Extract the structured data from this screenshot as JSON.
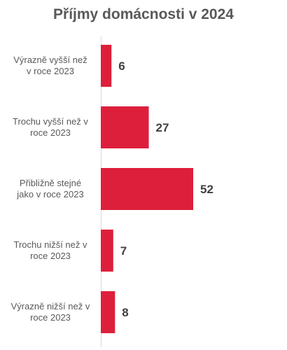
{
  "chart_data": {
    "type": "bar",
    "orientation": "horizontal",
    "title": "Příjmy domácnosti  v 2024",
    "categories": [
      "Výrazně vyšší než v roce 2023",
      "Trochu vyšší než v roce 2023",
      "Přibližně stejné jako v roce 2023",
      "Trochu nižší než v roce 2023",
      "Výrazně nižší než v roce 2023"
    ],
    "category_lines": [
      [
        "Výrazně vyšší než",
        "v roce 2023"
      ],
      [
        "Trochu vyšší než v",
        "roce 2023"
      ],
      [
        "Přibližně stejné",
        "jako v roce 2023"
      ],
      [
        "Trochu nižší než v",
        "roce 2023"
      ],
      [
        "Výrazně nižší než v",
        "roce 2023"
      ]
    ],
    "values": [
      6,
      27,
      52,
      7,
      8
    ],
    "data_labels": [
      "6",
      "27",
      "52",
      "7",
      "8"
    ],
    "xlim": [
      0,
      52
    ],
    "grid": false,
    "legend": "none",
    "bar_color": "#dd1f3c"
  }
}
